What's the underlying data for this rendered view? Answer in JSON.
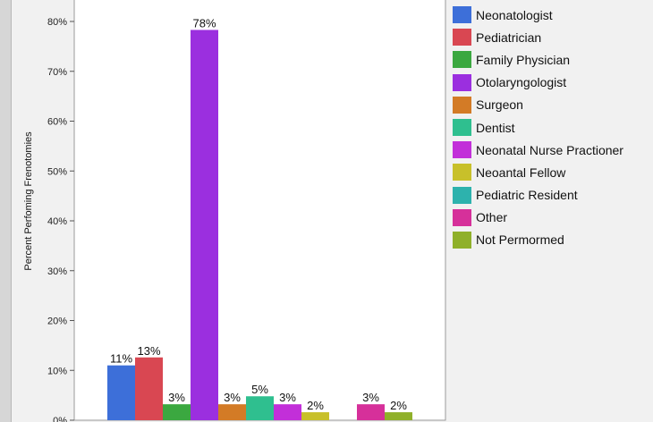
{
  "chart_data": {
    "type": "bar",
    "ylabel": "Percent Perfoming Frenotomies",
    "xlabel": "",
    "ylim": [
      0,
      85
    ],
    "yticks": [
      0,
      10,
      20,
      30,
      40,
      50,
      60,
      70,
      80
    ],
    "ytick_labels": [
      "0%",
      "10%",
      "20%",
      "30%",
      "40%",
      "50%",
      "60%",
      "70%",
      "80%"
    ],
    "grid": false,
    "legend_position": "right",
    "series": [
      {
        "name": "Neonatologist",
        "value": 11,
        "label": "11%",
        "color": "#3d6fd9"
      },
      {
        "name": "Pediatrician",
        "value": 12.6,
        "label": "13%",
        "color": "#d94752"
      },
      {
        "name": "Family Physician",
        "value": 3.2,
        "label": "3%",
        "color": "#3ba840"
      },
      {
        "name": "Otolaryngologist",
        "value": 78.3,
        "label": "78%",
        "color": "#9b2fdf"
      },
      {
        "name": "Surgeon",
        "value": 3.2,
        "label": "3%",
        "color": "#d37b26"
      },
      {
        "name": "Dentist",
        "value": 4.8,
        "label": "5%",
        "color": "#2fbf8f"
      },
      {
        "name": "Neonatal Nurse Practioner",
        "value": 3.2,
        "label": "3%",
        "color": "#c22fd9"
      },
      {
        "name": "Neoantal Fellow",
        "value": 1.6,
        "label": "2%",
        "color": "#c8c02a"
      },
      {
        "name": "Pediatric Resident",
        "value": 0,
        "label": "",
        "color": "#2db2ad"
      },
      {
        "name": "Other",
        "value": 3.2,
        "label": "3%",
        "color": "#d6309a"
      },
      {
        "name": "Not Permormed",
        "value": 1.6,
        "label": "2%",
        "color": "#8fb02a"
      }
    ]
  }
}
